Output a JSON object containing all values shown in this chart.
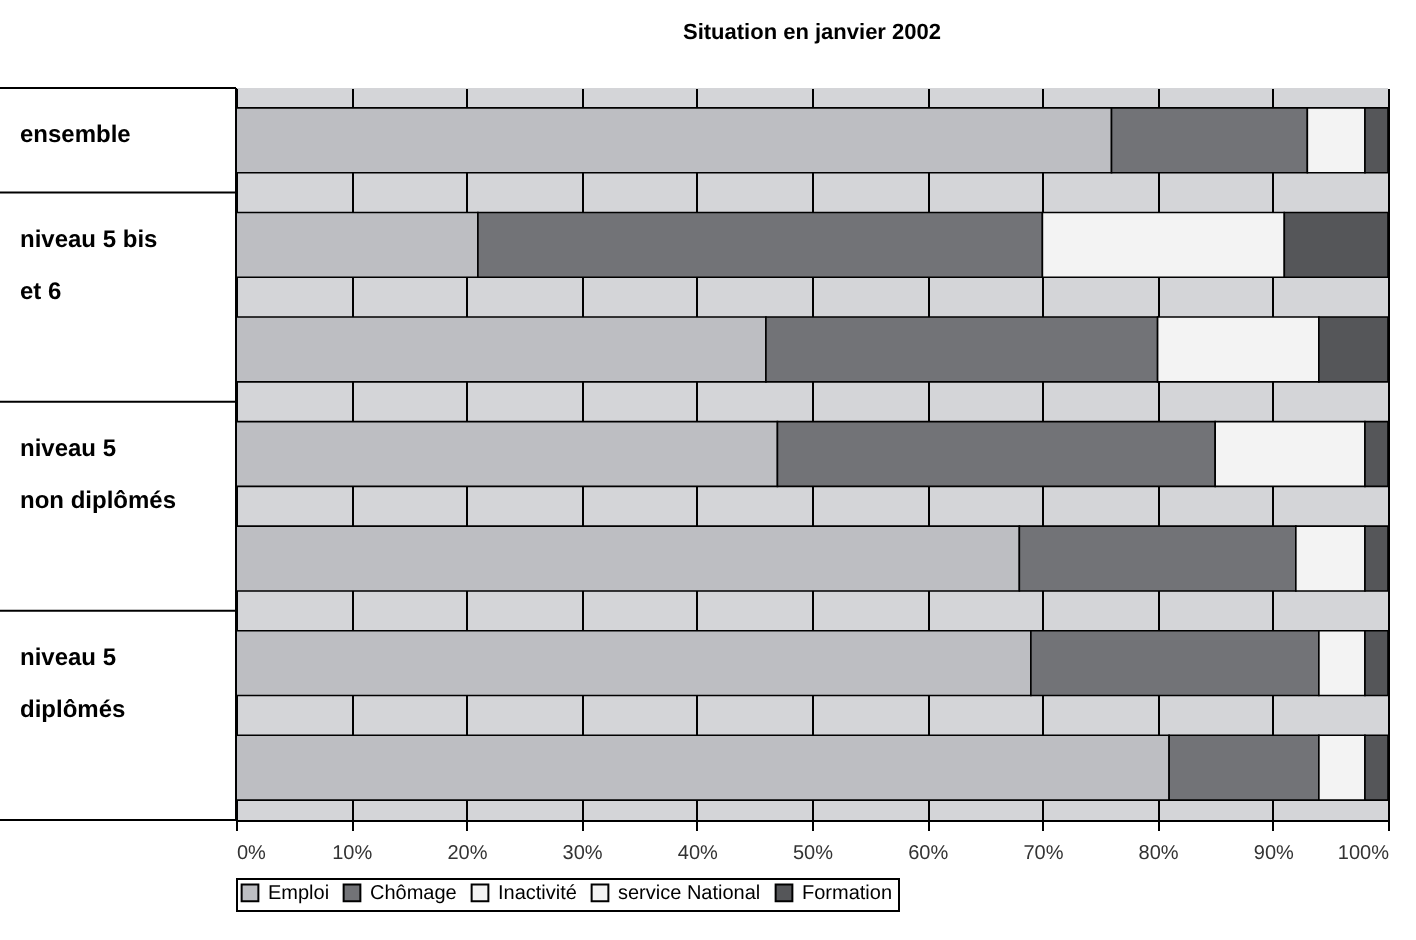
{
  "chart_data": {
    "type": "bar",
    "orientation": "horizontal",
    "stacked": true,
    "title": "Situation en janvier 2002",
    "categories": [
      "ensemble",
      "niveau 5 bis\net 6",
      null,
      "niveau 5\nnon diplômés",
      null,
      "niveau 5\ndiplômés",
      null
    ],
    "series": [
      {
        "name": "Emploi",
        "color": "#bdbec2",
        "values": [
          76,
          21,
          46,
          47,
          68,
          69,
          81
        ]
      },
      {
        "name": "Chômage",
        "color": "#727377",
        "values": [
          17,
          49,
          34,
          38,
          24,
          25,
          13
        ]
      },
      {
        "name": "Inactivité",
        "color": "#f3f3f3",
        "values": [
          5,
          21,
          14,
          13,
          6,
          4,
          4
        ]
      },
      {
        "name": "service National",
        "color": "#f3f3f3",
        "values": [
          null,
          null,
          null,
          null,
          null,
          null,
          null
        ]
      },
      {
        "name": "Formation",
        "color": "#555659",
        "values": [
          2,
          9,
          6,
          2,
          2,
          2,
          2
        ]
      }
    ],
    "xlim": [
      0,
      100
    ],
    "xticks": [
      {
        "value": 0,
        "label": "0%"
      },
      {
        "value": 10,
        "label": "10%"
      },
      {
        "value": 20,
        "label": "20%"
      },
      {
        "value": 30,
        "label": "30%"
      },
      {
        "value": 40,
        "label": "40%"
      },
      {
        "value": 50,
        "label": "50%"
      },
      {
        "value": 60,
        "label": "60%"
      },
      {
        "value": 70,
        "label": "70%"
      },
      {
        "value": 80,
        "label": "80%"
      },
      {
        "value": 90,
        "label": "90%"
      },
      {
        "value": 100,
        "label": "100%"
      }
    ],
    "grid": "x",
    "legend": "bottom"
  }
}
